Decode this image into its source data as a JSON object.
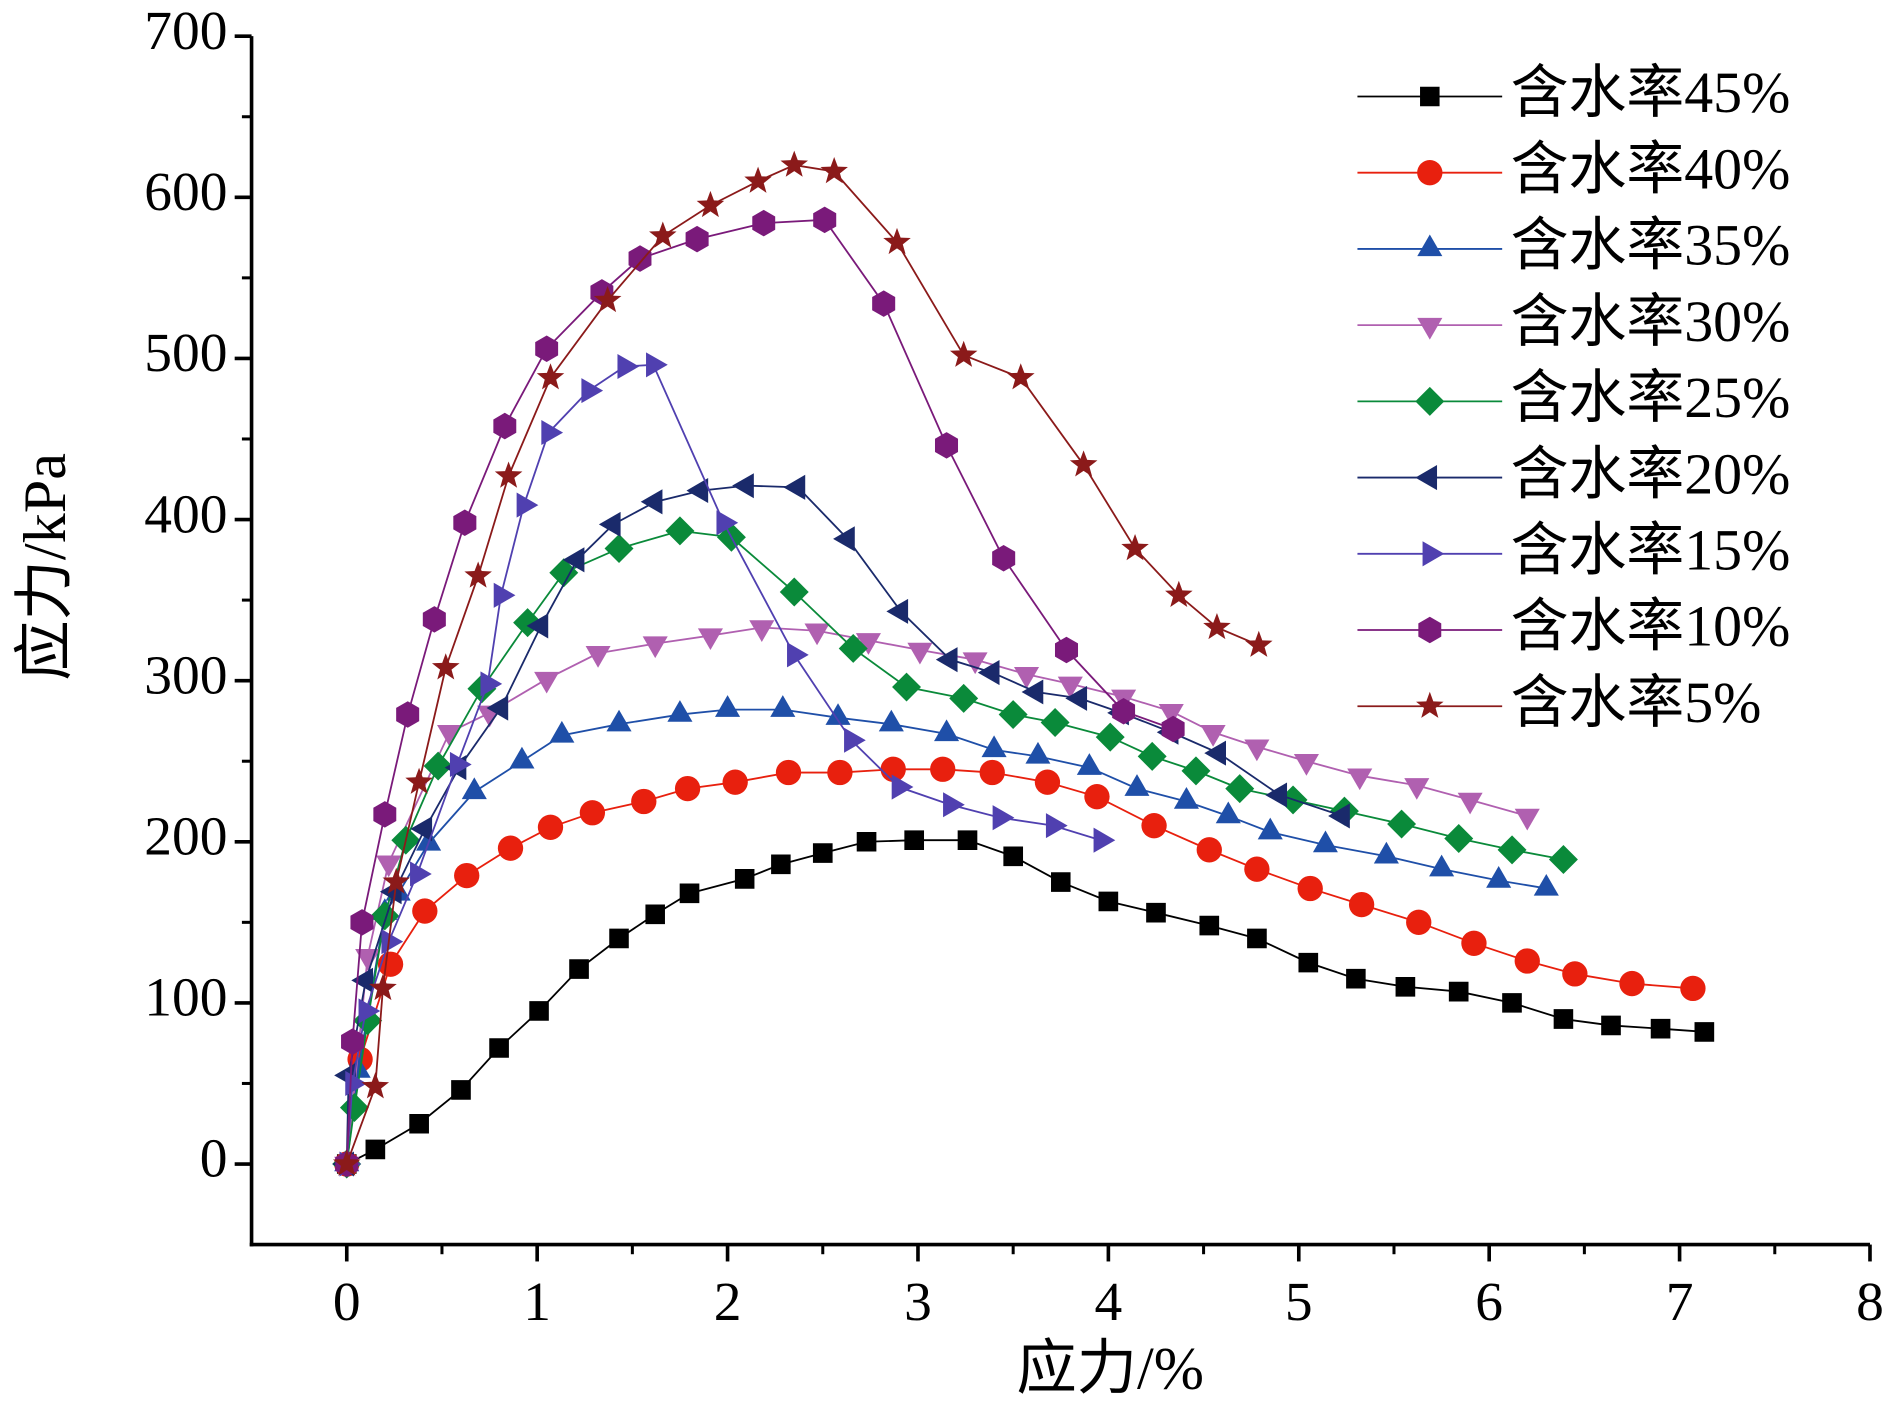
{
  "chart_data": {
    "type": "line",
    "x_label": "应力/%",
    "y_label": "应力/kPa",
    "xlim": [
      -0.5,
      8
    ],
    "ylim": [
      -50,
      700
    ],
    "xticks": [
      0,
      1,
      2,
      3,
      4,
      5,
      6,
      7,
      8
    ],
    "yticks": [
      0,
      100,
      200,
      300,
      400,
      500,
      600,
      700
    ],
    "legend": "upper right",
    "series": [
      {
        "name": "含水率45%",
        "color": "#000000",
        "marker": "square",
        "x": [
          0,
          0.15,
          0.38,
          0.6,
          0.8,
          1.01,
          1.22,
          1.43,
          1.62,
          1.8,
          2.09,
          2.28,
          2.5,
          2.73,
          2.98,
          3.26,
          3.5,
          3.75,
          4.0,
          4.25,
          4.53,
          4.78,
          5.05,
          5.3,
          5.56,
          5.84,
          6.12,
          6.39,
          6.64,
          6.9,
          7.13
        ],
        "values": [
          0,
          9,
          25,
          46,
          72,
          95,
          121,
          140,
          155,
          168,
          177,
          186,
          193,
          200,
          201,
          201,
          191,
          175,
          163,
          156,
          148,
          140,
          125,
          115,
          110,
          107,
          100,
          90,
          86,
          84,
          82
        ]
      },
      {
        "name": "含水率40%",
        "color": "#e8200e",
        "marker": "circle",
        "x": [
          0,
          0.07,
          0.23,
          0.41,
          0.63,
          0.86,
          1.07,
          1.29,
          1.56,
          1.79,
          2.04,
          2.32,
          2.59,
          2.87,
          3.13,
          3.39,
          3.68,
          3.94,
          4.24,
          4.53,
          4.78,
          5.06,
          5.33,
          5.63,
          5.92,
          6.2,
          6.45,
          6.75,
          7.07
        ],
        "values": [
          0,
          65,
          124,
          157,
          179,
          196,
          209,
          218,
          225,
          233,
          237,
          243,
          243,
          245,
          245,
          243,
          237,
          228,
          210,
          195,
          183,
          171,
          161,
          150,
          137,
          126,
          118,
          112,
          109
        ]
      },
      {
        "name": "含水率35%",
        "color": "#1f4fa8",
        "marker": "triangle-up",
        "x": [
          0,
          0.06,
          0.2,
          0.27,
          0.43,
          0.67,
          0.92,
          1.13,
          1.43,
          1.75,
          2.0,
          2.29,
          2.58,
          2.86,
          3.15,
          3.4,
          3.63,
          3.9,
          4.15,
          4.41,
          4.63,
          4.85,
          5.14,
          5.46,
          5.75,
          6.05,
          6.3
        ],
        "values": [
          0,
          58,
          156,
          168,
          199,
          231,
          250,
          266,
          273,
          279,
          282,
          282,
          277,
          273,
          267,
          257,
          253,
          246,
          233,
          225,
          216,
          206,
          198,
          191,
          183,
          176,
          171
        ]
      },
      {
        "name": "含水率30%",
        "color": "#b060b0",
        "marker": "triangle-down",
        "x": [
          0,
          0.11,
          0.22,
          0.54,
          0.75,
          1.05,
          1.32,
          1.62,
          1.91,
          2.18,
          2.47,
          2.74,
          3.01,
          3.3,
          3.57,
          3.8,
          4.08,
          4.33,
          4.55,
          4.78,
          5.04,
          5.32,
          5.62,
          5.9,
          6.2
        ],
        "values": [
          0,
          129,
          187,
          268,
          280,
          301,
          317,
          323,
          328,
          333,
          331,
          325,
          319,
          313,
          304,
          298,
          290,
          281,
          268,
          259,
          250,
          241,
          235,
          226,
          216
        ]
      },
      {
        "name": "含水率25%",
        "color": "#0a8a3a",
        "marker": "diamond",
        "x": [
          0,
          0.04,
          0.11,
          0.2,
          0.31,
          0.48,
          0.71,
          0.95,
          1.14,
          1.43,
          1.75,
          2.02,
          2.35,
          2.66,
          2.94,
          3.24,
          3.5,
          3.72,
          4.01,
          4.23,
          4.46,
          4.69,
          4.97,
          5.24,
          5.54,
          5.84,
          6.12,
          6.39
        ],
        "values": [
          0,
          35,
          89,
          154,
          201,
          247,
          295,
          336,
          367,
          382,
          393,
          389,
          355,
          320,
          296,
          289,
          279,
          274,
          265,
          253,
          244,
          233,
          226,
          219,
          211,
          202,
          195,
          189
        ]
      },
      {
        "name": "含水率20%",
        "color": "#1a2a6b",
        "marker": "triangle-left",
        "x": [
          0,
          0.01,
          0.1,
          0.25,
          0.41,
          0.59,
          0.81,
          1.02,
          1.21,
          1.4,
          1.62,
          1.86,
          2.1,
          2.37,
          2.63,
          2.91,
          3.17,
          3.39,
          3.62,
          3.85,
          4.07,
          4.33,
          4.58,
          4.9,
          5.23
        ],
        "values": [
          0,
          55,
          114,
          169,
          208,
          246,
          283,
          334,
          375,
          397,
          411,
          418,
          421,
          420,
          388,
          343,
          313,
          305,
          293,
          289,
          280,
          268,
          255,
          229,
          216
        ]
      },
      {
        "name": "含水率15%",
        "color": "#5040b0",
        "marker": "triangle-right",
        "x": [
          0,
          0.03,
          0.1,
          0.22,
          0.37,
          0.58,
          0.74,
          0.81,
          0.93,
          1.06,
          1.27,
          1.46,
          1.61,
          1.98,
          2.35,
          2.65,
          2.9,
          3.17,
          3.43,
          3.71,
          3.96
        ],
        "values": [
          0,
          50,
          95,
          138,
          180,
          248,
          298,
          353,
          409,
          454,
          480,
          495,
          496,
          398,
          316,
          263,
          234,
          223,
          215,
          210,
          201
        ]
      },
      {
        "name": "含水率10%",
        "color": "#7a1a7a",
        "marker": "hexagon",
        "x": [
          0,
          0.03,
          0.08,
          0.2,
          0.32,
          0.46,
          0.62,
          0.83,
          1.05,
          1.34,
          1.54,
          1.84,
          2.19,
          2.51,
          2.82,
          3.15,
          3.45,
          3.78,
          4.08,
          4.34
        ],
        "values": [
          0,
          76,
          150,
          217,
          279,
          338,
          398,
          458,
          506,
          541,
          562,
          574,
          584,
          586,
          534,
          446,
          376,
          319,
          281,
          270
        ]
      },
      {
        "name": "含水率5%",
        "color": "#8b1a1a",
        "marker": "star",
        "x": [
          0,
          0.15,
          0.19,
          0.26,
          0.38,
          0.52,
          0.69,
          0.85,
          1.07,
          1.37,
          1.66,
          1.91,
          2.16,
          2.35,
          2.56,
          2.89,
          3.24,
          3.54,
          3.87,
          4.14,
          4.37,
          4.57,
          4.79
        ],
        "values": [
          0,
          48,
          109,
          175,
          237,
          308,
          365,
          427,
          488,
          536,
          576,
          595,
          610,
          620,
          616,
          572,
          502,
          488,
          434,
          382,
          353,
          333,
          322
        ]
      }
    ]
  }
}
